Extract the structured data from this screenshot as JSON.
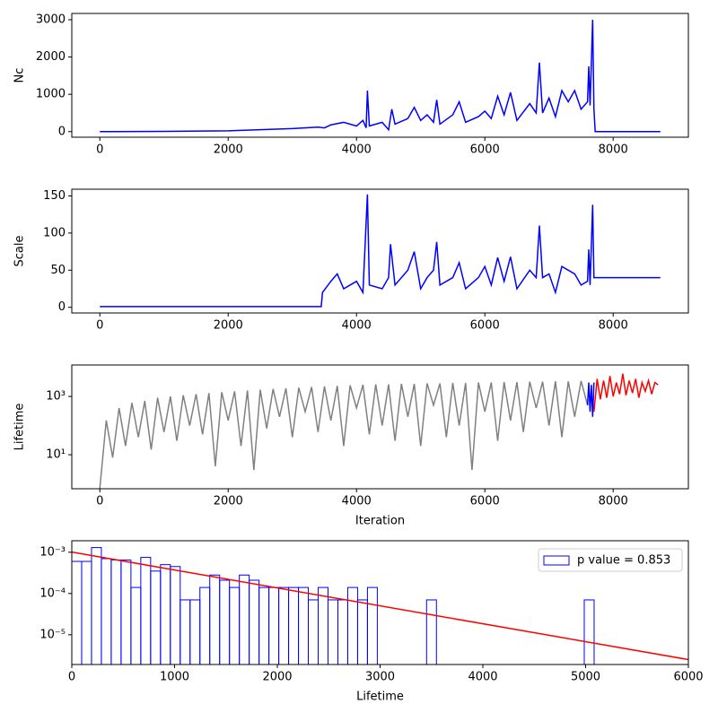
{
  "chart_data": [
    {
      "type": "line",
      "ylabel": "Nc",
      "xlim": [
        -437,
        9172
      ],
      "xticks": [
        0,
        2000,
        4000,
        6000,
        8000
      ],
      "ylim": [
        -150,
        3168
      ],
      "yticks": [
        0,
        1000,
        2000,
        3000
      ],
      "series": [
        {
          "color": "blue",
          "x": [
            0,
            1000,
            2000,
            2500,
            3000,
            3400,
            3500,
            3600,
            3800,
            4000,
            4100,
            4150,
            4170,
            4200,
            4400,
            4500,
            4550,
            4600,
            4800,
            4900,
            5000,
            5100,
            5200,
            5250,
            5300,
            5500,
            5600,
            5700,
            5900,
            6000,
            6100,
            6200,
            6300,
            6400,
            6500,
            6700,
            6800,
            6850,
            6900,
            7000,
            7100,
            7200,
            7300,
            7400,
            7500,
            7600,
            7620,
            7640,
            7680,
            7700,
            7720,
            8735
          ],
          "values": [
            0,
            5,
            20,
            50,
            80,
            120,
            100,
            180,
            250,
            150,
            300,
            100,
            1100,
            150,
            250,
            50,
            600,
            200,
            350,
            650,
            300,
            450,
            250,
            850,
            200,
            450,
            800,
            250,
            400,
            550,
            350,
            950,
            450,
            1050,
            300,
            750,
            500,
            1850,
            500,
            900,
            400,
            1100,
            800,
            1100,
            600,
            800,
            1750,
            700,
            3000,
            600,
            0,
            0
          ]
        }
      ]
    },
    {
      "type": "line",
      "ylabel": "Scale",
      "xlim": [
        -437,
        9172
      ],
      "xticks": [
        0,
        2000,
        4000,
        6000,
        8000
      ],
      "ylim": [
        -7.6,
        159
      ],
      "yticks": [
        0,
        50,
        100,
        150
      ],
      "series": [
        {
          "color": "blue",
          "x": [
            0,
            3450,
            3470,
            3600,
            3700,
            3800,
            4000,
            4100,
            4170,
            4200,
            4400,
            4500,
            4530,
            4600,
            4800,
            4900,
            5000,
            5100,
            5200,
            5250,
            5300,
            5500,
            5600,
            5700,
            5900,
            6000,
            6100,
            6200,
            6300,
            6400,
            6500,
            6700,
            6800,
            6850,
            6900,
            7000,
            7100,
            7200,
            7300,
            7400,
            7500,
            7600,
            7620,
            7640,
            7680,
            7700,
            8735
          ],
          "values": [
            1,
            1,
            20,
            35,
            45,
            25,
            35,
            20,
            152,
            30,
            25,
            40,
            85,
            30,
            50,
            75,
            25,
            40,
            50,
            88,
            30,
            40,
            60,
            25,
            40,
            55,
            30,
            67,
            35,
            68,
            25,
            50,
            40,
            110,
            40,
            45,
            20,
            55,
            50,
            45,
            30,
            35,
            78,
            30,
            138,
            40,
            40
          ]
        }
      ]
    },
    {
      "type": "line",
      "ylabel": "Lifetime",
      "xlabel": "Iteration",
      "log_y": true,
      "xlim": [
        -437,
        9172
      ],
      "xticks": [
        0,
        2000,
        4000,
        6000,
        8000
      ],
      "ylim": [
        0.68,
        12000
      ],
      "yticks": [
        {
          "value": 10,
          "label": "10¹"
        },
        {
          "value": 1000,
          "label": "10³"
        }
      ],
      "series": [
        {
          "color": "gray",
          "x": [
            0,
            100,
            200,
            300,
            400,
            500,
            600,
            700,
            800,
            900,
            1000,
            1100,
            1200,
            1300,
            1400,
            1500,
            1600,
            1700,
            1800,
            1900,
            2000,
            2100,
            2200,
            2300,
            2400,
            2500,
            2600,
            2700,
            2800,
            2900,
            3000,
            3100,
            3200,
            3300,
            3400,
            3500,
            3600,
            3700,
            3800,
            3900,
            4000,
            4100,
            4200,
            4300,
            4400,
            4500,
            4600,
            4700,
            4800,
            4900,
            5000,
            5100,
            5200,
            5300,
            5400,
            5500,
            5600,
            5700,
            5800,
            5900,
            6000,
            6100,
            6200,
            6300,
            6400,
            6500,
            6600,
            6700,
            6800,
            6900,
            7000,
            7100,
            7200,
            7300,
            7400,
            7500,
            7600
          ],
          "values": [
            0.7,
            150,
            8,
            400,
            20,
            600,
            40,
            700,
            15,
            900,
            60,
            1000,
            30,
            1100,
            100,
            1200,
            50,
            1300,
            4,
            1400,
            150,
            1500,
            20,
            1600,
            3,
            1700,
            80,
            1800,
            200,
            1900,
            40,
            2000,
            300,
            2100,
            60,
            2200,
            150,
            2300,
            20,
            2400,
            400,
            2500,
            50,
            2600,
            100,
            2600,
            30,
            2700,
            200,
            2700,
            20,
            2800,
            500,
            2800,
            40,
            2900,
            100,
            2900,
            3,
            3000,
            300,
            3000,
            30,
            3100,
            150,
            3100,
            60,
            3200,
            400,
            3200,
            100,
            3300,
            40,
            3300,
            200,
            3400,
            500
          ]
        },
        {
          "color": "blue",
          "x": [
            7600,
            7620,
            7640,
            7660,
            7680,
            7700
          ],
          "values": [
            500,
            3000,
            300,
            2500,
            200,
            3000
          ]
        },
        {
          "color": "red",
          "x": [
            7700,
            7750,
            7800,
            7850,
            7900,
            7950,
            8000,
            8050,
            8100,
            8150,
            8200,
            8250,
            8300,
            8350,
            8400,
            8450,
            8500,
            8550,
            8600,
            8650,
            8700
          ],
          "values": [
            300,
            4000,
            800,
            3500,
            900,
            5000,
            1000,
            3000,
            1200,
            6000,
            1100,
            3500,
            1300,
            4000,
            900,
            3000,
            1500,
            3500,
            1200,
            3000,
            2500
          ]
        }
      ]
    },
    {
      "type": "histogram",
      "xlabel": "Lifetime",
      "log_y": true,
      "legend": "upper right",
      "xlim": [
        0,
        6000
      ],
      "xticks": [
        0,
        1000,
        2000,
        3000,
        4000,
        5000,
        6000
      ],
      "ylim": [
        1.9e-06,
        0.0019
      ],
      "yticks": [
        {
          "value": 1e-05,
          "label": "10⁻⁵"
        },
        {
          "value": 0.0001,
          "label": "10⁻⁴"
        },
        {
          "value": 0.001,
          "label": "10⁻³"
        }
      ],
      "name": "p value = 0.853",
      "color": "blue",
      "bins": [
        0,
        95.9,
        191.8,
        287.7,
        383.6,
        479.5,
        575.4,
        671.3,
        767.2,
        863.1,
        959,
        1054.9,
        1150.8,
        1246.7,
        1342.6,
        1438.5,
        1534.4,
        1630.3,
        1726.2,
        1822.1,
        1918,
        2013.9,
        2109.8,
        2205.7,
        2301.6,
        2397.5,
        2493.4,
        2589.3,
        2685.2,
        2781.1,
        2877,
        2972.9,
        3068.8,
        3164.7,
        3260.6,
        3356.5,
        3452.4,
        3548.3,
        3644.2,
        3740.1,
        3836,
        3931.9,
        4027.8,
        4123.7,
        4219.6,
        4315.5,
        4411.4,
        4507.3,
        4603.2,
        4699.1,
        4795,
        4890.9,
        4986.8,
        5082.7
      ],
      "values": [
        0.0006,
        0.0006,
        0.0013,
        0.0007,
        0.00065,
        0.00065,
        0.00014,
        0.00075,
        0.00035,
        0.0005,
        0.00045,
        7e-05,
        7e-05,
        0.00014,
        0.00028,
        0.00021,
        0.00014,
        0.00028,
        0.00021,
        0.00014,
        0.00014,
        0.00014,
        0.00014,
        0.00014,
        7e-05,
        0.00014,
        7e-05,
        7e-05,
        0.00014,
        7e-05,
        0.00014,
        0,
        0,
        0,
        0,
        0,
        7e-05,
        0,
        0,
        0,
        0,
        0,
        0,
        0,
        0,
        0,
        0,
        0,
        0,
        0,
        0,
        0,
        7e-05
      ],
      "fit": {
        "color": "red",
        "x": [
          0,
          6000
        ],
        "values": [
          0.00101,
          2.5e-06
        ]
      }
    }
  ]
}
